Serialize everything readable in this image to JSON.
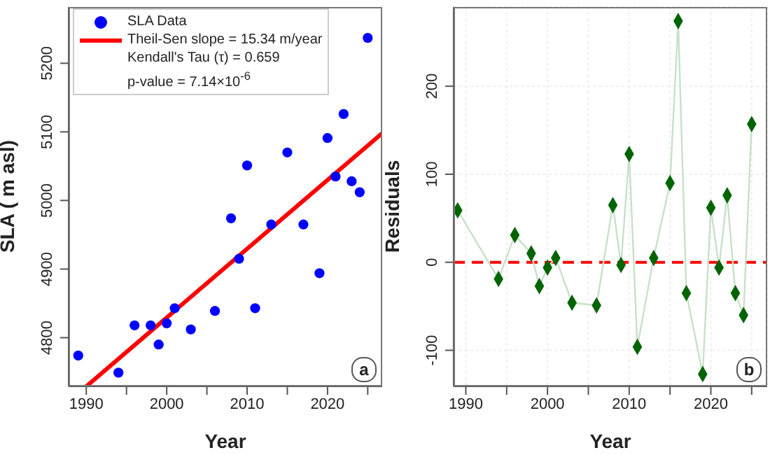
{
  "chart_data": [
    {
      "type": "scatter",
      "xlabel": "Year",
      "ylabel": "SLA ( m asl)",
      "xlim": [
        1987.8,
        2026.8
      ],
      "ylim": [
        4729,
        5282
      ],
      "xticks": [
        1990,
        {
          "value": 1995,
          "label": null
        },
        2000,
        {
          "value": 2005,
          "label": null
        },
        2010,
        {
          "value": 2015,
          "label": null
        },
        2020,
        {
          "value": 2025,
          "label": null
        }
      ],
      "yticks": [
        4800,
        4900,
        5000,
        5100,
        5200
      ],
      "grid": false,
      "legend": "top left",
      "annotations": [
        "Kendall's Tau (τ) = 0.659",
        "p-value = 7.14×10$^{-6}$",
        "a"
      ],
      "series": [
        {
          "name": "SLA Data",
          "marker": "circle",
          "color": "#0000ff",
          "x": [
            1989,
            1994,
            1996,
            1998,
            1999,
            2000,
            2001,
            2003,
            2006,
            2008,
            2009,
            2010,
            2011,
            2013,
            2015,
            2017,
            2019,
            2020,
            2021,
            2022,
            2023,
            2024,
            2025
          ],
          "values": [
            4774,
            4749,
            4818,
            4818,
            4790,
            4821,
            4843,
            4812,
            4839,
            4974,
            4915,
            5051,
            4843,
            4965,
            5070,
            4965,
            4894,
            5091,
            5035,
            5126,
            5028,
            5012,
            5237
          ]
        },
        {
          "name": "Theil-Sen slope = 15.34 m/year",
          "type": "line",
          "marker": "none",
          "color": "#ff0000",
          "x": [
            1990,
            2026.8
          ],
          "values": [
            4729,
            5098
          ]
        }
      ]
    },
    {
      "type": "scatter",
      "xlabel": "Year",
      "ylabel": "Residuals",
      "xlim": [
        1988.5,
        2026.9
      ],
      "ylim": [
        -141,
        290
      ],
      "xticks": [
        1990,
        {
          "value": 1995,
          "label": null
        },
        2000,
        {
          "value": 2005,
          "label": null
        },
        2010,
        {
          "value": 2015,
          "label": null
        },
        2020,
        {
          "value": 2025,
          "label": null
        }
      ],
      "yticks": [
        -100,
        0,
        100,
        200
      ],
      "grid": true,
      "legend": false,
      "annotations": [
        "b"
      ],
      "ref_lines": [
        {
          "axis": "y",
          "value": 0,
          "color": "#ff0000",
          "line_style": "dashed"
        }
      ],
      "series": [
        {
          "type": "line",
          "marker": "none",
          "color": "#c8e0c8",
          "x": [
            1989,
            1994,
            1996,
            1998,
            1999,
            2000,
            2001,
            2003,
            2006,
            2008,
            2009,
            2010,
            2011,
            2013,
            2015,
            2016,
            2017,
            2019,
            2020,
            2021,
            2022,
            2023,
            2024,
            2025
          ],
          "values": [
            59,
            -19,
            31,
            10,
            -27,
            -6,
            5,
            -46,
            -49,
            65,
            -3,
            123,
            -96,
            5,
            90,
            274,
            -35,
            -127,
            62,
            -6,
            76,
            -35,
            -60,
            157
          ]
        },
        {
          "marker": "diamond",
          "color": "#006400",
          "x": [
            1989,
            1994,
            1996,
            1998,
            1999,
            2000,
            2001,
            2003,
            2006,
            2008,
            2009,
            2010,
            2011,
            2013,
            2015,
            2016,
            2017,
            2019,
            2020,
            2021,
            2022,
            2023,
            2024,
            2025
          ],
          "values": [
            59,
            -19,
            31,
            10,
            -27,
            -6,
            5,
            -46,
            -49,
            65,
            -3,
            123,
            -96,
            5,
            90,
            274,
            -35,
            -127,
            62,
            -6,
            76,
            -35,
            -60,
            157
          ]
        }
      ]
    }
  ]
}
